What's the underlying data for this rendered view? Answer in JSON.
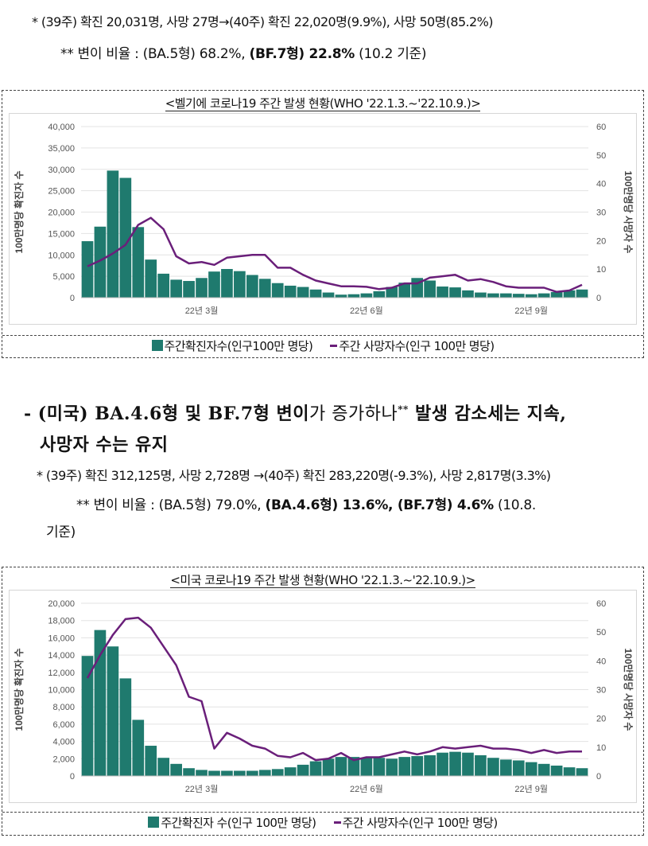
{
  "belgium_note": {
    "star": "*",
    "stats": "(39주) 확진 20,031명, 사망 27명→(40주) 확진 22,020명(9.9%), 사망 50명(85.2%)",
    "variant_marker": "**",
    "variant_prefix": "변이 비율 : (BA.5형) 68.2%,",
    "variant_highlight": "(BF.7형) 22.8%",
    "variant_suffix": "(10.2 기준)"
  },
  "us_section": {
    "bullet": "- (미국)",
    "headline_part1": "BA.4.6형 및 BF.7형 변이",
    "headline_part2": "가 증가하나",
    "headline_marker": "**",
    "headline_part3": "발생 감소세는 지속,",
    "headline_line2": "사망자 수는 유지",
    "star": "*",
    "stats": "(39주) 확진 312,125명, 사망 2,728명 →(40주) 확진 283,220명(-9.3%), 사망 2,817명(3.3%)",
    "variant_marker": "**",
    "variant_prefix": "변이 비율 : (BA.5형) 79.0%,",
    "variant_highlight": "(BA.4.6형) 13.6%, (BF.7형) 4.6%",
    "variant_suffix": "(10.8.",
    "variant_line2": "기준)"
  },
  "colors": {
    "bar": "#1F7A6E",
    "line": "#6A1F7A",
    "grid": "#E3E3E3",
    "axis_text": "#555555"
  },
  "chart_data": [
    {
      "type": "bar+line",
      "title": "<벨기에 코로나19 주간 발생 현황(WHO '22.1.3.~'22.10.9.)>",
      "ylabel": "100만명당 확진자 수",
      "y2label": "100만명당 사망자 수",
      "ylim": [
        0,
        40000
      ],
      "y2lim": [
        0,
        60
      ],
      "yticks": [
        "0",
        "5,000",
        "10,000",
        "15,000",
        "20,000",
        "25,000",
        "30,000",
        "35,000",
        "40,000"
      ],
      "y2ticks": [
        "0",
        "10",
        "20",
        "30",
        "40",
        "50",
        "60"
      ],
      "xlabels": [
        {
          "label": "22년 3월",
          "week": 9
        },
        {
          "label": "22년 6월",
          "week": 22
        },
        {
          "label": "22년 9월",
          "week": 35
        }
      ],
      "bar_series": {
        "name": "주간 확진자 수(인구 100만 명당)",
        "values": [
          13200,
          16600,
          29700,
          28000,
          16500,
          8900,
          5600,
          4200,
          3900,
          4600,
          6100,
          6700,
          6200,
          5300,
          4400,
          3400,
          2800,
          2500,
          1900,
          1200,
          700,
          800,
          1000,
          1500,
          2500,
          3500,
          4600,
          4000,
          2600,
          2400,
          1700,
          1200,
          1000,
          1000,
          900,
          800,
          1000,
          1300,
          1700,
          1900
        ]
      },
      "line_series": {
        "name": "주간 사망자 수(인구 100만 명당)",
        "values": [
          11,
          13,
          15.5,
          18.5,
          25.5,
          28,
          24,
          14.5,
          12,
          12.5,
          11.5,
          14,
          14.5,
          15,
          15,
          10.5,
          10.5,
          8,
          6,
          5,
          4,
          4,
          3.8,
          3,
          3.5,
          5,
          5,
          7,
          7.5,
          8,
          6,
          6.5,
          5.5,
          4,
          3.5,
          3.5,
          3.5,
          2,
          2.5,
          4.5
        ]
      },
      "legend": {
        "bar_label": "주간확진자수(인구100만 명당)",
        "line_label": "주간 사망자수(인구 100만 명당)"
      }
    },
    {
      "type": "bar+line",
      "title": "<미국 코로나19 주간 발생 현황(WHO '22.1.3.~'22.10.9.)>",
      "ylabel": "100만명당 확진자 수",
      "y2label": "100만명당 사망자 수",
      "ylim": [
        0,
        20000
      ],
      "y2lim": [
        0,
        60
      ],
      "yticks": [
        "0",
        "2,000",
        "4,000",
        "6,000",
        "8,000",
        "10,000",
        "12,000",
        "14,000",
        "16,000",
        "18,000",
        "20,000"
      ],
      "y2ticks": [
        "0",
        "10",
        "20",
        "30",
        "40",
        "50",
        "60"
      ],
      "xlabels": [
        {
          "label": "22년 3월",
          "week": 9
        },
        {
          "label": "22년 6월",
          "week": 22
        },
        {
          "label": "22년 9월",
          "week": 35
        }
      ],
      "bar_series": {
        "name": "주간확진자 수(인구 100만 명당)",
        "values": [
          13900,
          16900,
          15000,
          11300,
          6500,
          3500,
          2100,
          1400,
          900,
          700,
          600,
          600,
          600,
          600,
          700,
          800,
          1000,
          1300,
          1700,
          2000,
          2200,
          2200,
          2100,
          2100,
          2000,
          2200,
          2300,
          2400,
          2700,
          2800,
          2700,
          2400,
          2100,
          1900,
          1800,
          1600,
          1400,
          1200,
          1000,
          900
        ]
      },
      "line_series": {
        "name": "주간 사망자수(인구 100만 명당)",
        "values": [
          34,
          42,
          49,
          54.5,
          55,
          51.5,
          45,
          38.5,
          27.5,
          26,
          9.5,
          15,
          13,
          10.5,
          9.5,
          7,
          6.5,
          8,
          5.5,
          6,
          8,
          5.5,
          6.5,
          6.5,
          7.5,
          8.5,
          7.5,
          8.5,
          10,
          9.5,
          10,
          10.5,
          9.5,
          9.5,
          9,
          8,
          9,
          8,
          8.5,
          8.5
        ]
      },
      "legend": {
        "bar_label": "주간확진자 수(인구 100만 명당)",
        "line_label": "주간 사망자수(인구 100만 명당)"
      }
    }
  ]
}
